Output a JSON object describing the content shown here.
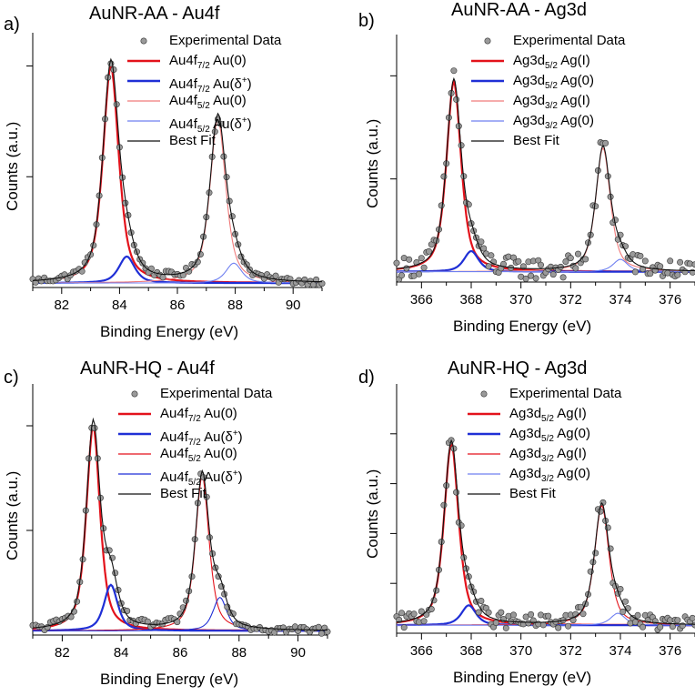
{
  "chart_data": [
    {
      "type": "line",
      "panel_label": "a)",
      "title": "AuNR-AA - Au4f",
      "xlabel": "Binding Energy (eV)",
      "ylabel": "Counts (a.u.)",
      "xlim": [
        81,
        91
      ],
      "ylim": [
        0,
        1.15
      ],
      "xticks": [
        82,
        84,
        86,
        88,
        90
      ],
      "yticks": [
        0.5,
        1.0
      ],
      "legend_position": "top-right",
      "legend": [
        {
          "kind": "marker",
          "base": "Experimental Data",
          "sub": "",
          "suffix": "",
          "sup": "",
          "end": ""
        },
        {
          "kind": "line",
          "color": "#e3121b",
          "width": 2.5,
          "base": "Au4f",
          "sub": "7/2",
          "suffix": " Au(0)",
          "sup": "",
          "end": ""
        },
        {
          "kind": "line",
          "color": "#1f2fd6",
          "width": 2.5,
          "base": "Au4f",
          "sub": "7/2",
          "suffix": " Au(δ",
          "sup": "+",
          "end": ")"
        },
        {
          "kind": "line",
          "color": "#f07a7a",
          "width": 1.2,
          "base": "Au4f",
          "sub": "5/2",
          "suffix": " Au(0)",
          "sup": "",
          "end": ""
        },
        {
          "kind": "line",
          "color": "#6f7ff0",
          "width": 1.2,
          "base": "Au4f",
          "sub": "5/2",
          "suffix": " Au(δ",
          "sup": "+",
          "end": ")"
        },
        {
          "kind": "line",
          "color": "#111111",
          "width": 1.2,
          "base": "Best Fit",
          "sub": "",
          "suffix": "",
          "sup": "",
          "end": ""
        }
      ],
      "baseline": 0.02,
      "series": [
        {
          "name": "Au4f7/2 Au(0)",
          "color": "#e3121b",
          "width": 2.2,
          "center": 83.7,
          "amplitude": 0.98,
          "fwhm": 0.65
        },
        {
          "name": "Au4f7/2 Au(δ+)",
          "color": "#1f2fd6",
          "width": 2.2,
          "center": 84.25,
          "amplitude": 0.12,
          "fwhm": 0.65
        },
        {
          "name": "Au4f5/2 Au(0)",
          "color": "#f07a7a",
          "width": 1.1,
          "center": 87.4,
          "amplitude": 0.74,
          "fwhm": 0.65
        },
        {
          "name": "Au4f5/2 Au(δ+)",
          "color": "#6f7ff0",
          "width": 1.1,
          "center": 87.95,
          "amplitude": 0.09,
          "fwhm": 0.65
        }
      ],
      "noise": 0.015,
      "x_step": 0.1
    },
    {
      "type": "line",
      "panel_label": "b)",
      "title": "AuNR-AA - Ag3d",
      "xlabel": "Binding Energy (eV)",
      "ylabel": "Counts (a.u.)",
      "xlim": [
        365,
        377
      ],
      "ylim": [
        0,
        1.2
      ],
      "xticks": [
        366,
        368,
        370,
        372,
        374,
        376
      ],
      "yticks": [
        0.5,
        1.0
      ],
      "legend_position": "top-right",
      "legend": [
        {
          "kind": "marker",
          "base": "Experimental Data",
          "sub": "",
          "suffix": "",
          "sup": "",
          "end": ""
        },
        {
          "kind": "line",
          "color": "#e3121b",
          "width": 2.5,
          "base": "Ag3d",
          "sub": "5/2",
          "suffix": " Ag(I)",
          "sup": "",
          "end": ""
        },
        {
          "kind": "line",
          "color": "#1f2fd6",
          "width": 2.5,
          "base": "Ag3d",
          "sub": "5/2",
          "suffix": " Ag(0)",
          "sup": "",
          "end": ""
        },
        {
          "kind": "line",
          "color": "#f07a7a",
          "width": 1.2,
          "base": "Ag3d",
          "sub": "3/2",
          "suffix": " Ag(I)",
          "sup": "",
          "end": ""
        },
        {
          "kind": "line",
          "color": "#6f7ff0",
          "width": 1.2,
          "base": "Ag3d",
          "sub": "3/2",
          "suffix": " Ag(0)",
          "sup": "",
          "end": ""
        },
        {
          "kind": "line",
          "color": "#111111",
          "width": 1.2,
          "base": "Best Fit",
          "sub": "",
          "suffix": "",
          "sup": "",
          "end": ""
        }
      ],
      "baseline": 0.05,
      "series": [
        {
          "name": "Ag3d5/2 Ag(I)",
          "color": "#e3121b",
          "width": 2.2,
          "center": 367.3,
          "amplitude": 0.92,
          "fwhm": 0.7
        },
        {
          "name": "Ag3d5/2 Ag(0)",
          "color": "#1f2fd6",
          "width": 2.2,
          "center": 368.0,
          "amplitude": 0.1,
          "fwhm": 0.7
        },
        {
          "name": "Ag3d3/2 Ag(I)",
          "color": "#f07a7a",
          "width": 1.1,
          "center": 373.3,
          "amplitude": 0.6,
          "fwhm": 0.7
        },
        {
          "name": "Ag3d3/2 Ag(0)",
          "color": "#6f7ff0",
          "width": 1.1,
          "center": 374.0,
          "amplitude": 0.06,
          "fwhm": 0.7
        }
      ],
      "noise": 0.05,
      "x_step": 0.1
    },
    {
      "type": "line",
      "panel_label": "c)",
      "title": "AuNR-HQ - Au4f",
      "xlabel": "Binding Energy (eV)",
      "ylabel": "Counts (a.u.)",
      "xlim": [
        81,
        91
      ],
      "ylim": [
        0,
        1.2
      ],
      "xticks": [
        82,
        84,
        86,
        88,
        90
      ],
      "yticks": [
        0.5,
        1.0
      ],
      "legend_position": "top-right",
      "legend": [
        {
          "kind": "marker",
          "base": "Experimental Data",
          "sub": "",
          "suffix": "",
          "sup": "",
          "end": ""
        },
        {
          "kind": "line",
          "color": "#e3121b",
          "width": 2.5,
          "base": "Au4f",
          "sub": "7/2",
          "suffix": " Au(0)",
          "sup": "",
          "end": ""
        },
        {
          "kind": "line",
          "color": "#1f2fd6",
          "width": 2.5,
          "base": "Au4f",
          "sub": "7/2",
          "suffix": " Au(δ",
          "sup": "+",
          "end": ")"
        },
        {
          "kind": "line",
          "color": "#e3121b",
          "width": 1.2,
          "base": "Au4f",
          "sub": "5/2",
          "suffix": " Au(0)",
          "sup": "",
          "end": ""
        },
        {
          "kind": "line",
          "color": "#1f2fd6",
          "width": 1.2,
          "base": "Au4f",
          "sub": "5/2",
          "suffix": " Au(δ",
          "sup": "+",
          "end": ")"
        },
        {
          "kind": "line",
          "color": "#111111",
          "width": 1.2,
          "base": "Best Fit",
          "sub": "",
          "suffix": "",
          "sup": "",
          "end": ""
        }
      ],
      "baseline": 0.02,
      "series": [
        {
          "name": "Au4f7/2 Au(0)",
          "color": "#e3121b",
          "width": 2.2,
          "center": 83.05,
          "amplitude": 0.98,
          "fwhm": 0.55
        },
        {
          "name": "Au4f7/2 Au(δ+)",
          "color": "#1f2fd6",
          "width": 2.2,
          "center": 83.65,
          "amplitude": 0.22,
          "fwhm": 0.55
        },
        {
          "name": "Au4f5/2 Au(0)",
          "color": "#e3121b",
          "width": 1.1,
          "center": 86.75,
          "amplitude": 0.74,
          "fwhm": 0.55
        },
        {
          "name": "Au4f5/2 Au(δ+)",
          "color": "#1f2fd6",
          "width": 1.1,
          "center": 87.35,
          "amplitude": 0.16,
          "fwhm": 0.55
        }
      ],
      "noise": 0.02,
      "x_step": 0.1
    },
    {
      "type": "line",
      "panel_label": "d)",
      "title": "AuNR-HQ - Ag3d",
      "xlabel": "Binding Energy (eV)",
      "ylabel": "Counts (a.u.)",
      "xlim": [
        365,
        377
      ],
      "ylim": [
        0,
        1.25
      ],
      "xticks": [
        366,
        368,
        370,
        372,
        374,
        376
      ],
      "yticks": [
        0.25,
        0.5,
        0.75,
        1.0
      ],
      "legend_position": "top-right",
      "legend": [
        {
          "kind": "marker",
          "base": "Experimental Data",
          "sub": "",
          "suffix": "",
          "sup": "",
          "end": ""
        },
        {
          "kind": "line",
          "color": "#e3121b",
          "width": 2.5,
          "base": "Ag3d",
          "sub": "5/2",
          "suffix": " Ag(I)",
          "sup": "",
          "end": ""
        },
        {
          "kind": "line",
          "color": "#1f2fd6",
          "width": 2.5,
          "base": "Ag3d",
          "sub": "5/2",
          "suffix": " Ag(0)",
          "sup": "",
          "end": ""
        },
        {
          "kind": "line",
          "color": "#e3121b",
          "width": 1.2,
          "base": "Ag3d",
          "sub": "3/2",
          "suffix": " Ag(I)",
          "sup": "",
          "end": ""
        },
        {
          "kind": "line",
          "color": "#6f7ff0",
          "width": 1.2,
          "base": "Ag3d",
          "sub": "3/2",
          "suffix": " Ag(0)",
          "sup": "",
          "end": ""
        },
        {
          "kind": "line",
          "color": "#111111",
          "width": 1.2,
          "base": "Best Fit",
          "sub": "",
          "suffix": "",
          "sup": "",
          "end": ""
        }
      ],
      "baseline": 0.04,
      "series": [
        {
          "name": "Ag3d5/2 Ag(I)",
          "color": "#e3121b",
          "width": 2.2,
          "center": 367.2,
          "amplitude": 0.91,
          "fwhm": 0.7
        },
        {
          "name": "Ag3d5/2 Ag(0)",
          "color": "#1f2fd6",
          "width": 2.2,
          "center": 367.9,
          "amplitude": 0.1,
          "fwhm": 0.7
        },
        {
          "name": "Ag3d3/2 Ag(I)",
          "color": "#e3121b",
          "width": 1.1,
          "center": 373.25,
          "amplitude": 0.6,
          "fwhm": 0.7
        },
        {
          "name": "Ag3d3/2 Ag(0)",
          "color": "#6f7ff0",
          "width": 1.1,
          "center": 373.9,
          "amplitude": 0.06,
          "fwhm": 0.7
        }
      ],
      "noise": 0.04,
      "x_step": 0.1
    }
  ]
}
